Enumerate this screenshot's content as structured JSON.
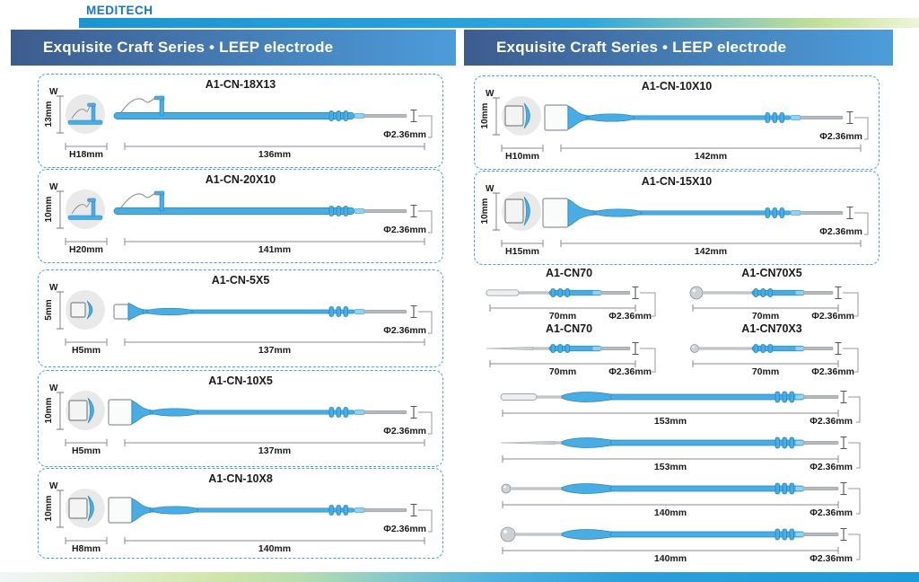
{
  "logo": "MEDITECH",
  "banners": [
    {
      "title": "Exquisite Craft Series • LEEP electrode"
    },
    {
      "title": "Exquisite Craft Series • LEEP electrode"
    }
  ],
  "colors": {
    "electrode_blue": "#49ade3",
    "electrode_blue_dark": "#2285c0",
    "electrode_blue_light": "#8fd2f1",
    "metal_gray": "#b6babd",
    "banner_gradient_from": "#3d5c8e",
    "banner_gradient_to": "#4c9cda",
    "accent_blue": "#1e9ad9",
    "dashed_border": "#4aa0dc"
  },
  "left_boxes": [
    {
      "model": "A1-CN-18X13",
      "tip": "wire-loop",
      "w_label": "W",
      "w_value": "13mm",
      "h_value": "H18mm",
      "length": "136mm",
      "diameter": "Φ2.36mm"
    },
    {
      "model": "A1-CN-20X10",
      "tip": "wire-loop",
      "w_label": "W",
      "w_value": "10mm",
      "h_value": "H20mm",
      "length": "141mm",
      "diameter": "Φ2.36mm"
    },
    {
      "model": "A1-CN-5X5",
      "tip": "square-small",
      "w_label": "W",
      "w_value": "5mm",
      "h_value": "H5mm",
      "length": "137mm",
      "diameter": "Φ2.36mm"
    },
    {
      "model": "A1-CN-10X5",
      "tip": "square-flare",
      "w_label": "W",
      "w_value": "10mm",
      "h_value": "H5mm",
      "length": "137mm",
      "diameter": "Φ2.36mm"
    },
    {
      "model": "A1-CN-10X8",
      "tip": "square-flare",
      "w_label": "W",
      "w_value": "10mm",
      "h_value": "H8mm",
      "length": "140mm",
      "diameter": "Φ2.36mm"
    }
  ],
  "right_boxes": [
    {
      "model": "A1-CN-10X10",
      "tip": "square-flare",
      "w_label": "W",
      "w_value": "10mm",
      "h_value": "H10mm",
      "length": "142mm",
      "diameter": "Φ2.36mm"
    },
    {
      "model": "A1-CN-15X10",
      "tip": "square-flare-wide",
      "w_label": "W",
      "w_value": "10mm",
      "h_value": "H15mm",
      "length": "142mm",
      "diameter": "Φ2.36mm"
    }
  ],
  "small_electrodes": [
    {
      "model": "A1-CN70",
      "tip": "blade",
      "length": "70mm",
      "diameter": "Φ2.36mm"
    },
    {
      "model": "A1-CN70X5",
      "tip": "ball-large",
      "length": "70mm",
      "diameter": "Φ2.36mm"
    },
    {
      "model": "A1-CN70",
      "tip": "needle",
      "length": "70mm",
      "diameter": "Φ2.36mm"
    },
    {
      "model": "A1-CN70X3",
      "tip": "ball-small",
      "length": "70mm",
      "diameter": "Φ2.36mm"
    }
  ],
  "long_electrodes": [
    {
      "tip": "blade",
      "length": "153mm",
      "diameter": "Φ2.36mm"
    },
    {
      "tip": "needle",
      "length": "153mm",
      "diameter": "Φ2.36mm"
    },
    {
      "tip": "ball-small",
      "length": "140mm",
      "diameter": "Φ2.36mm"
    },
    {
      "tip": "ball-large",
      "length": "140mm",
      "diameter": "Φ2.36mm"
    }
  ]
}
